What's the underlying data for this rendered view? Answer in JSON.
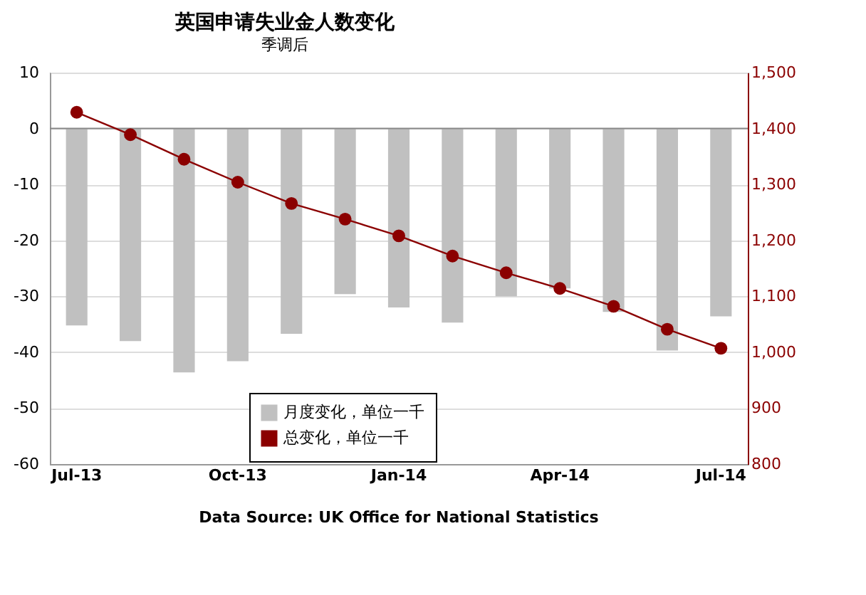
{
  "chart_data": {
    "type": "bar",
    "title": "英国申请失业金人数变化",
    "subtitle": "季调后",
    "categories": [
      "Jul-13",
      null,
      null,
      "Oct-13",
      null,
      null,
      "Jan-14",
      null,
      null,
      "Apr-14",
      null,
      null,
      "Jul-14"
    ],
    "series": [
      {
        "name": "月度变化，单位一千",
        "color": "#c0c0c0",
        "values": [
          -35.2,
          -38.0,
          -43.6,
          -41.6,
          -36.7,
          -29.6,
          -32.0,
          -34.7,
          -30.0,
          -28.6,
          -32.8,
          -39.7,
          -33.6
        ]
      },
      {
        "name": "总变化，单位一千",
        "type": "line",
        "axis": "y2",
        "color": "#8b0000",
        "marker": "circle",
        "values": [
          1429,
          1389,
          1345,
          1304,
          1266,
          1238,
          1208,
          1172,
          1142,
          1114,
          1082,
          1041,
          1007
        ]
      }
    ],
    "ylim": [
      -60,
      10
    ],
    "yticks": [
      -60,
      -50,
      -40,
      -30,
      -20,
      -10,
      0,
      10
    ],
    "y2lim": [
      800,
      1500
    ],
    "y2ticks": [
      {
        "value": 800,
        "label": "800"
      },
      {
        "value": 900,
        "label": "900"
      },
      {
        "value": 1000,
        "label": "1,000"
      },
      {
        "value": 1100,
        "label": "1,100"
      },
      {
        "value": 1200,
        "label": "1,200"
      },
      {
        "value": 1300,
        "label": "1,300"
      },
      {
        "value": 1400,
        "label": "1,400"
      },
      {
        "value": 1500,
        "label": "1,500"
      }
    ],
    "grid": "y",
    "legend": "bottom",
    "annotations": [
      "Data Source: UK Office for National Statistics"
    ]
  }
}
